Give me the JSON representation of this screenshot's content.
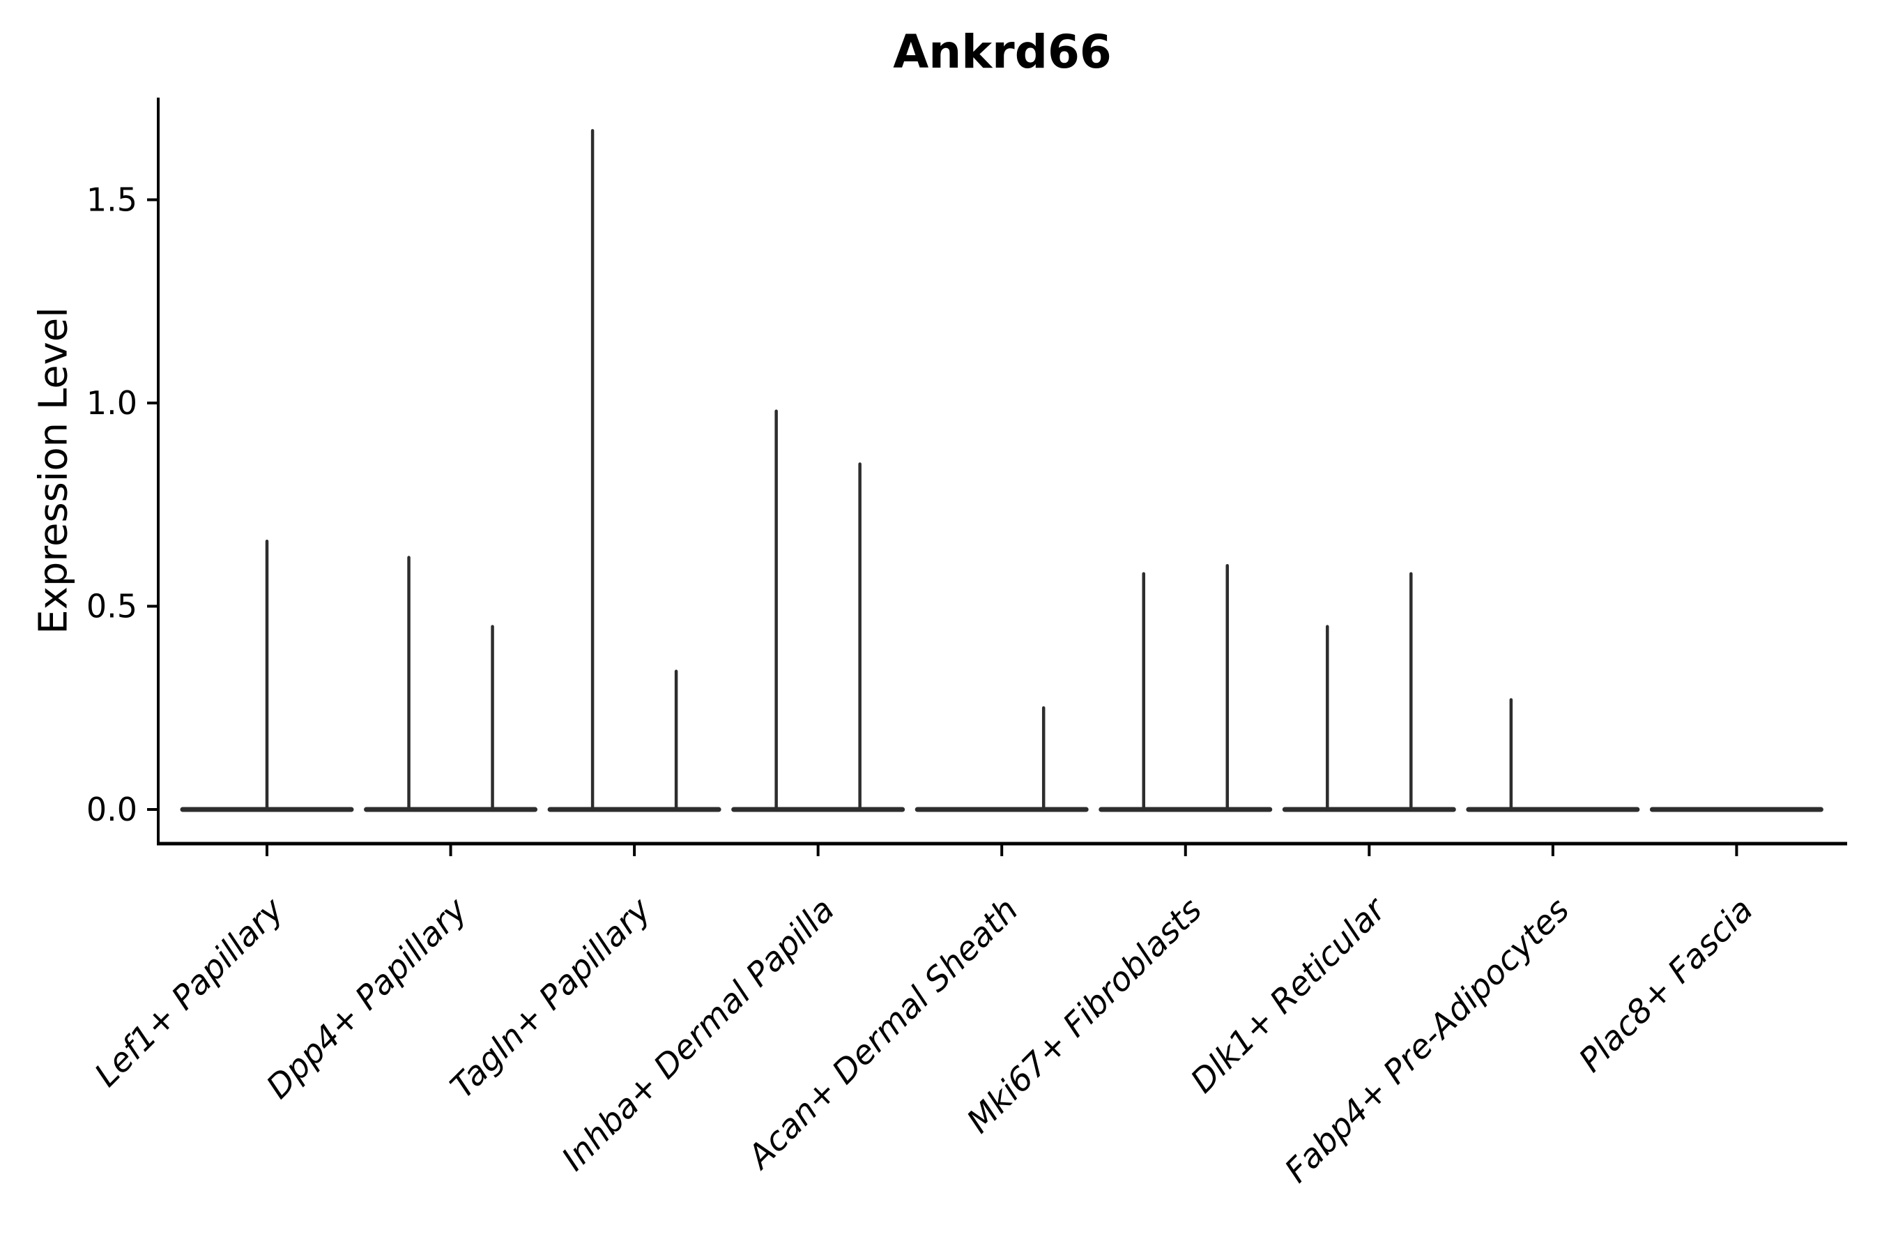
{
  "figure": {
    "background_color": "#ffffff"
  },
  "chart_data": {
    "type": "violin",
    "title": "Ankrd66",
    "xlabel": "",
    "ylabel": "Expression Level",
    "legend": "none",
    "grid": false,
    "axis_color": "#000000",
    "violin_line_color": "#2d2d2d",
    "ylim": [
      -0.09,
      1.84
    ],
    "ytick_labels": [
      "0.0",
      "0.5",
      "1.0",
      "1.5"
    ],
    "ytick_values": [
      0,
      0.5,
      1.0,
      1.5
    ],
    "categories": [
      "Lef1+ Papillary",
      "Dpp4+ Papillary",
      "Tagln+ Papillary",
      "Inhba+ Dermal Papilla",
      "Acan+ Dermal Sheath",
      "Mki67+ Fibroblasts",
      "Dlk1+ Reticular",
      "Fabp4+ Pre-Adipocytes",
      "Plac8+ Fascia"
    ],
    "description": "Collapsed violins: each category shows a flat base at expression 0 with thin vertical spikes reaching the max expression value; spikes sit at the category center or offset left/right within the category.",
    "baseline_value": 0,
    "violins": [
      {
        "category": "Lef1+ Papillary",
        "spikes": [
          {
            "pos": "center",
            "max": 0.66
          }
        ]
      },
      {
        "category": "Dpp4+ Papillary",
        "spikes": [
          {
            "pos": "left",
            "max": 0.62
          },
          {
            "pos": "right",
            "max": 0.45
          }
        ]
      },
      {
        "category": "Tagln+ Papillary",
        "spikes": [
          {
            "pos": "left",
            "max": 1.67
          },
          {
            "pos": "right",
            "max": 0.34
          }
        ]
      },
      {
        "category": "Inhba+ Dermal Papilla",
        "spikes": [
          {
            "pos": "left",
            "max": 0.98
          },
          {
            "pos": "right",
            "max": 0.85
          }
        ]
      },
      {
        "category": "Acan+ Dermal Sheath",
        "spikes": [
          {
            "pos": "right",
            "max": 0.25
          }
        ]
      },
      {
        "category": "Mki67+ Fibroblasts",
        "spikes": [
          {
            "pos": "left",
            "max": 0.58
          },
          {
            "pos": "right",
            "max": 0.6
          }
        ]
      },
      {
        "category": "Dlk1+ Reticular",
        "spikes": [
          {
            "pos": "left",
            "max": 0.45
          },
          {
            "pos": "right",
            "max": 0.58
          }
        ]
      },
      {
        "category": "Fabp4+ Pre-Adipocytes",
        "spikes": [
          {
            "pos": "left",
            "max": 0.27
          }
        ]
      },
      {
        "category": "Plac8+ Fascia",
        "spikes": []
      }
    ]
  }
}
